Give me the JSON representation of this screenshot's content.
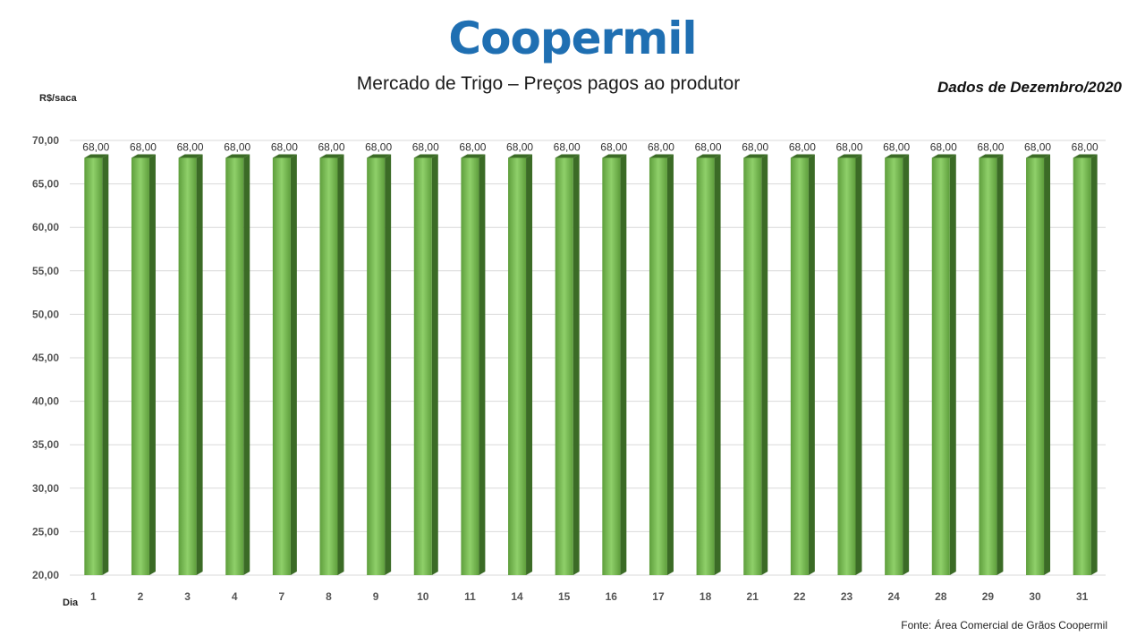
{
  "logo_text": "Coopermil",
  "title": "Mercado de Trigo – Preços pagos ao produtor",
  "period": "Dados de Dezembro/2020",
  "source": "Fonte: Área Comercial de Grãos Coopermil",
  "colors": {
    "logo": "#1f6fb2",
    "bar_light": "#8fd06a",
    "bar_mid": "#5e9e3c",
    "bar_dark": "#3b6b26"
  },
  "chart_data": {
    "type": "bar",
    "ylabel": "R$/saca",
    "xlabel": "Dia",
    "ylim": [
      20,
      70
    ],
    "y_ticks": [
      "20,00",
      "25,00",
      "30,00",
      "35,00",
      "40,00",
      "45,00",
      "50,00",
      "55,00",
      "60,00",
      "65,00",
      "70,00"
    ],
    "grid": true,
    "categories": [
      "1",
      "2",
      "3",
      "4",
      "7",
      "8",
      "9",
      "10",
      "11",
      "14",
      "15",
      "16",
      "17",
      "18",
      "21",
      "22",
      "23",
      "24",
      "28",
      "29",
      "30",
      "31"
    ],
    "values": [
      68,
      68,
      68,
      68,
      68,
      68,
      68,
      68,
      68,
      68,
      68,
      68,
      68,
      68,
      68,
      68,
      68,
      68,
      68,
      68,
      68,
      68
    ],
    "value_labels": [
      "68,00",
      "68,00",
      "68,00",
      "68,00",
      "68,00",
      "68,00",
      "68,00",
      "68,00",
      "68,00",
      "68,00",
      "68,00",
      "68,00",
      "68,00",
      "68,00",
      "68,00",
      "68,00",
      "68,00",
      "68,00",
      "68,00",
      "68,00",
      "68,00",
      "68,00"
    ]
  }
}
